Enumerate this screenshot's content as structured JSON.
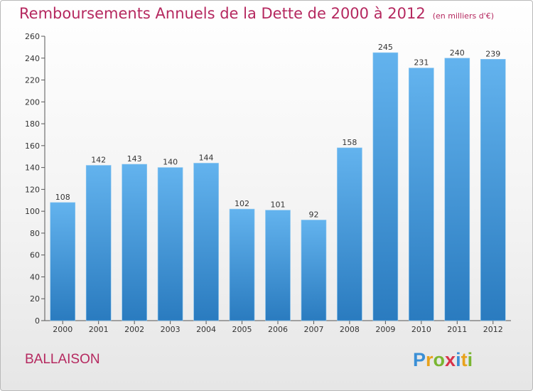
{
  "title": "Remboursements Annuels de la Dette de 2000 à 2012",
  "subtitle": "(en milliers d'€)",
  "commune": "BALLAISON",
  "logo": {
    "letters": [
      "P",
      "r",
      "o",
      "x",
      "i",
      "t",
      "i"
    ],
    "colors": [
      "#3a8fd6",
      "#e8a21c",
      "#7ab632",
      "#d8334a",
      "#3a8fd6",
      "#e8a21c",
      "#7ab632"
    ]
  },
  "colors": {
    "bar_top": "#63b3ee",
    "bar_bottom": "#2a7bbf",
    "title": "#b5285f"
  },
  "chart_data": {
    "type": "bar",
    "title": "Remboursements Annuels de la Dette de 2000 à 2012",
    "subtitle": "(en milliers d'€)",
    "xlabel": "",
    "ylabel": "",
    "categories": [
      "2000",
      "2001",
      "2002",
      "2003",
      "2004",
      "2005",
      "2006",
      "2007",
      "2008",
      "2009",
      "2010",
      "2011",
      "2012"
    ],
    "values": [
      108,
      142,
      143,
      140,
      144,
      102,
      101,
      92,
      158,
      245,
      231,
      240,
      239
    ],
    "ylim": [
      0,
      260
    ],
    "yticks": [
      0,
      20,
      40,
      60,
      80,
      100,
      120,
      140,
      160,
      180,
      200,
      220,
      240,
      260
    ],
    "grid": false,
    "legend": "none"
  }
}
